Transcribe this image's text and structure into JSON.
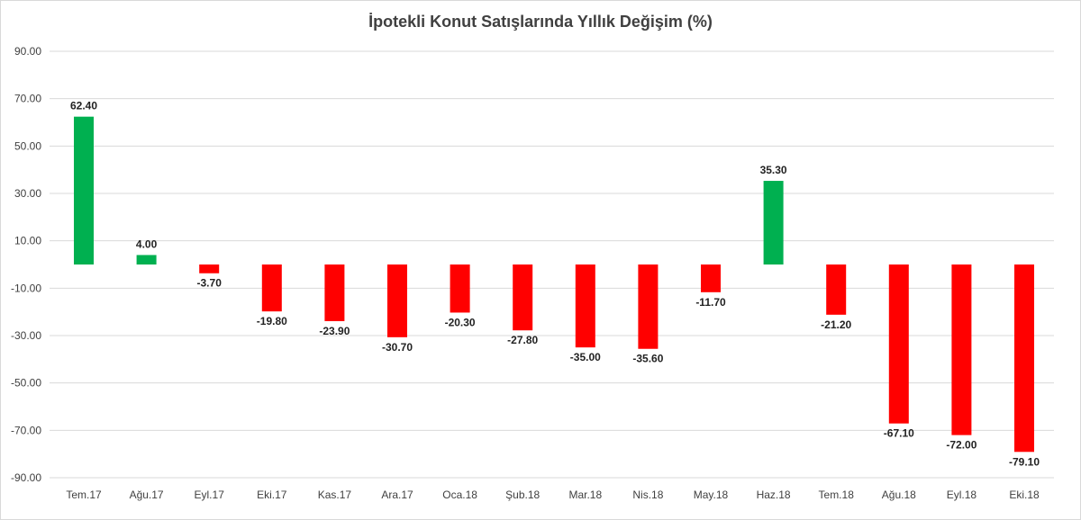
{
  "chart_data": {
    "type": "bar",
    "title": "İpotekli Konut Satışlarında Yıllık Değişim (%)",
    "xlabel": "",
    "ylabel": "",
    "ylim": [
      -90,
      90
    ],
    "yticks": [
      "90.00",
      "70.00",
      "50.00",
      "30.00",
      "10.00",
      "-10.00",
      "-30.00",
      "-50.00",
      "-70.00",
      "-90.00"
    ],
    "ytick_values": [
      90,
      70,
      50,
      30,
      10,
      -10,
      -30,
      -50,
      -70,
      -90
    ],
    "grid": true,
    "legend": "none",
    "categories": [
      "Tem.17",
      "Ağu.17",
      "Eyl.17",
      "Eki.17",
      "Kas.17",
      "Ara.17",
      "Oca.18",
      "Şub.18",
      "Mar.18",
      "Nis.18",
      "May.18",
      "Haz.18",
      "Tem.18",
      "Ağu.18",
      "Eyl.18",
      "Eki.18"
    ],
    "values": [
      62.4,
      4.0,
      -3.7,
      -19.8,
      -23.9,
      -30.7,
      -20.3,
      -27.8,
      -35.0,
      -35.6,
      -11.7,
      35.3,
      -21.2,
      -67.1,
      -72.0,
      -79.1
    ],
    "data_labels": [
      "62.40",
      "4.00",
      "-3.70",
      "-19.80",
      "-23.90",
      "-30.70",
      "-20.30",
      "-27.80",
      "-35.00",
      "-35.60",
      "-11.70",
      "35.30",
      "-21.20",
      "-67.10",
      "-72.00",
      "-79.10"
    ],
    "colors": {
      "positive": "#00b050",
      "negative": "#ff0000",
      "grid": "#d9d9d9",
      "text": "#404040"
    }
  }
}
